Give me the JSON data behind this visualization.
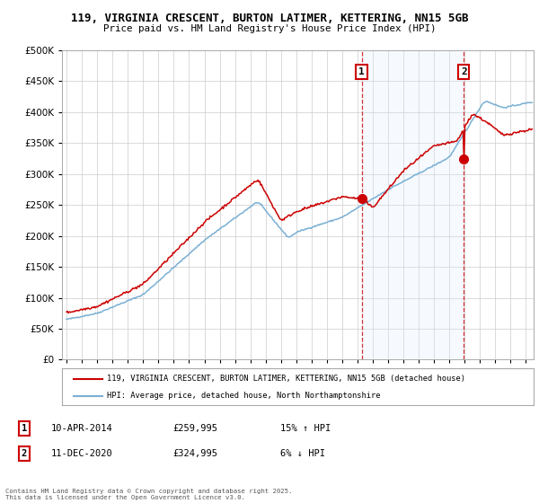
{
  "title_line1": "119, VIRGINIA CRESCENT, BURTON LATIMER, KETTERING, NN15 5GB",
  "title_line2": "Price paid vs. HM Land Registry's House Price Index (HPI)",
  "legend_label1": "119, VIRGINIA CRESCENT, BURTON LATIMER, KETTERING, NN15 5GB (detached house)",
  "legend_label2": "HPI: Average price, detached house, North Northamptonshire",
  "annotation1_label": "1",
  "annotation1_date": "10-APR-2014",
  "annotation1_price": "£259,995",
  "annotation1_hpi": "15% ↑ HPI",
  "annotation2_label": "2",
  "annotation2_date": "11-DEC-2020",
  "annotation2_price": "£324,995",
  "annotation2_hpi": "6% ↓ HPI",
  "footer": "Contains HM Land Registry data © Crown copyright and database right 2025.\nThis data is licensed under the Open Government Licence v3.0.",
  "sale1_year": 2014.27,
  "sale1_price": 259995,
  "sale2_year": 2020.94,
  "sale2_price": 324995,
  "line_color_sold": "#cc0000",
  "line_color_hpi": "#7ab0d4",
  "shade_color": "#ddeeff",
  "background_color": "#ffffff",
  "grid_color": "#cccccc",
  "ylim": [
    0,
    500000
  ],
  "yticks": [
    0,
    50000,
    100000,
    150000,
    200000,
    250000,
    300000,
    350000,
    400000,
    450000,
    500000
  ],
  "xmin": 1994.7,
  "xmax": 2025.5
}
